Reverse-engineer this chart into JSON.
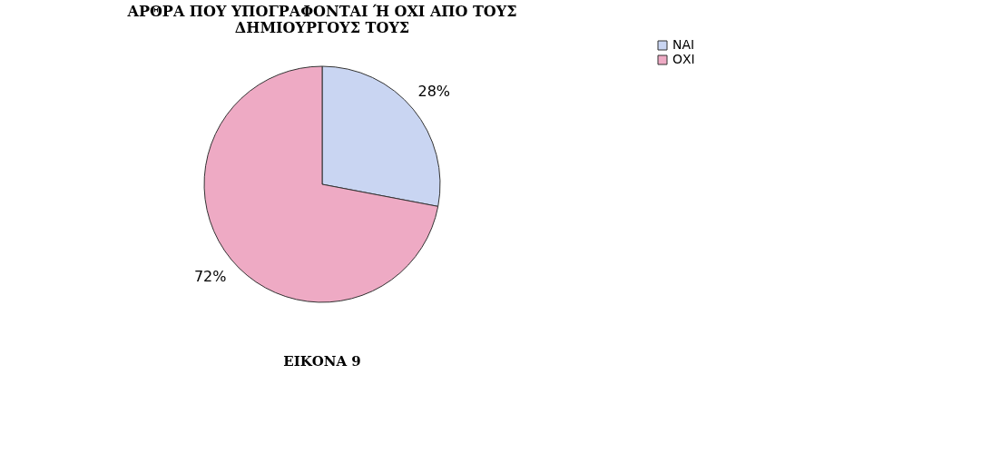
{
  "chart_data": {
    "type": "pie",
    "title": [
      "ΑΡΘΡΑ ΠΟΥ ΥΠΟΓΡΑΦΟΝΤΑΙ Ή ΟΧΙ ΑΠΟ ΤΟΥΣ",
      "ΔΗΜΙΟΥΡΓΟΥΣ ΤΟΥΣ"
    ],
    "categories": [
      "ΝΑΙ",
      "ΟΧΙ"
    ],
    "values": [
      28,
      72
    ],
    "colors": [
      "#c9d5f2",
      "#eeaac4"
    ],
    "value_labels": [
      "28%",
      "72%"
    ],
    "legend": "right",
    "annotations": [
      "ΕΙΚΟΝΑ 9"
    ]
  }
}
